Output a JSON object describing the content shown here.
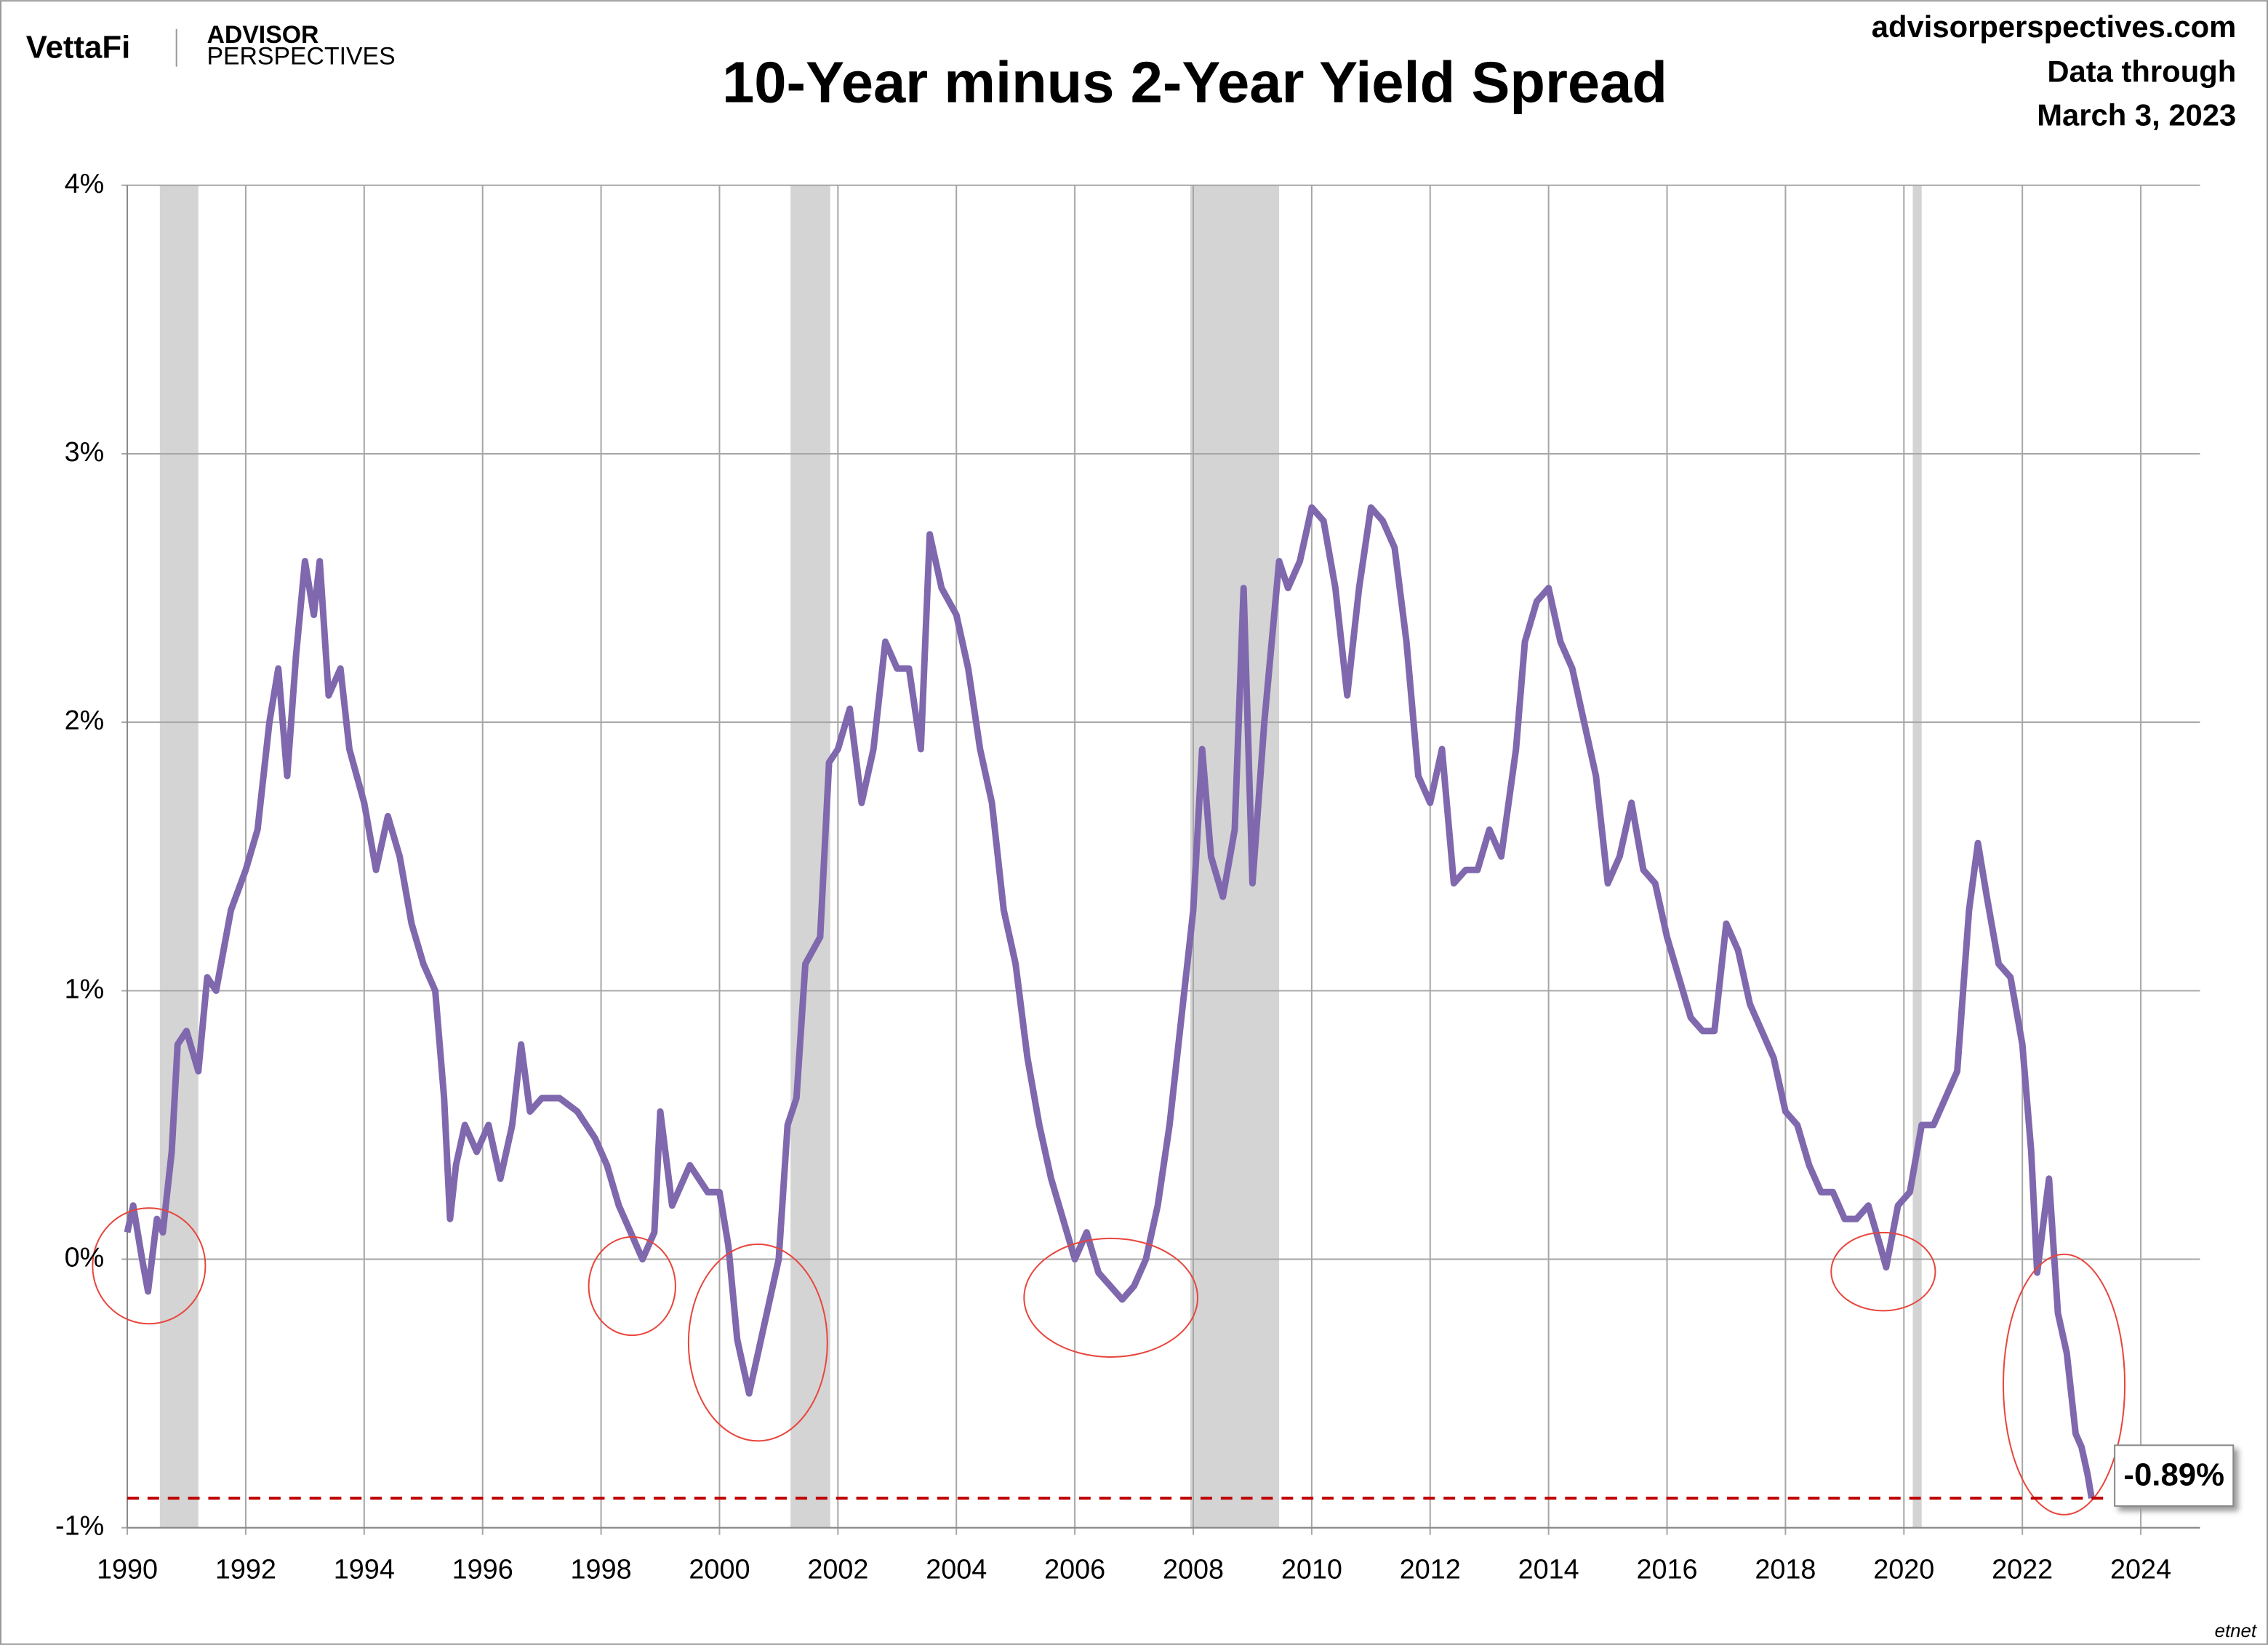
{
  "header": {
    "brand": "VettaFi",
    "logo_top": "ADVISOR",
    "logo_bottom": "PERSPECTIVES",
    "site": "advisorperspectives.com",
    "note_top": "Data through",
    "note_bottom": "March 3, 2023",
    "watermark": "etnet"
  },
  "chart_data": {
    "type": "line",
    "title": "10-Year minus 2-Year Yield Spread",
    "color": "#7f68ad",
    "grid": true,
    "xlim": [
      1990,
      2025
    ],
    "ylim": [
      -1,
      4
    ],
    "xticks": [
      1990,
      1992,
      1994,
      1996,
      1998,
      2000,
      2002,
      2004,
      2006,
      2008,
      2010,
      2012,
      2014,
      2016,
      2018,
      2020,
      2022,
      2024
    ],
    "yticks": [
      {
        "value": -1,
        "label": "-1%"
      },
      {
        "value": 0,
        "label": "0%"
      },
      {
        "value": 1,
        "label": "1%"
      },
      {
        "value": 2,
        "label": "2%"
      },
      {
        "value": 3,
        "label": "3%"
      },
      {
        "value": 4,
        "label": "4%"
      }
    ],
    "recession_color": "#d4d4d4",
    "recessions": [
      [
        1990.55,
        1991.2
      ],
      [
        2001.2,
        2001.87
      ],
      [
        2007.95,
        2009.45
      ],
      [
        2020.15,
        2020.3
      ]
    ],
    "annotation": {
      "value": -0.89,
      "label": "-0.89%",
      "color": "#c00000"
    },
    "x": [
      1990.0,
      1990.1,
      1990.25,
      1990.35,
      1990.5,
      1990.6,
      1990.75,
      1990.85,
      1991.0,
      1991.2,
      1991.35,
      1991.5,
      1991.75,
      1992.0,
      1992.2,
      1992.4,
      1992.55,
      1992.7,
      1992.85,
      1993.0,
      1993.15,
      1993.25,
      1993.4,
      1993.6,
      1993.75,
      1994.0,
      1994.2,
      1994.4,
      1994.6,
      1994.8,
      1995.0,
      1995.2,
      1995.35,
      1995.45,
      1995.55,
      1995.7,
      1995.9,
      1996.1,
      1996.3,
      1996.5,
      1996.65,
      1996.8,
      1997.0,
      1997.3,
      1997.6,
      1997.9,
      1998.1,
      1998.3,
      1998.5,
      1998.7,
      1998.9,
      1999.0,
      1999.2,
      1999.5,
      1999.8,
      2000.0,
      2000.15,
      2000.3,
      2000.5,
      2000.7,
      2000.85,
      2001.0,
      2001.15,
      2001.3,
      2001.45,
      2001.7,
      2001.85,
      2002.0,
      2002.2,
      2002.4,
      2002.6,
      2002.8,
      2003.0,
      2003.2,
      2003.4,
      2003.55,
      2003.75,
      2004.0,
      2004.2,
      2004.4,
      2004.6,
      2004.8,
      2005.0,
      2005.2,
      2005.4,
      2005.6,
      2005.8,
      2006.0,
      2006.2,
      2006.4,
      2006.6,
      2006.8,
      2007.0,
      2007.2,
      2007.4,
      2007.6,
      2007.8,
      2008.0,
      2008.15,
      2008.3,
      2008.5,
      2008.7,
      2008.85,
      2009.0,
      2009.2,
      2009.45,
      2009.6,
      2009.8,
      2010.0,
      2010.2,
      2010.4,
      2010.6,
      2010.8,
      2011.0,
      2011.2,
      2011.4,
      2011.6,
      2011.8,
      2012.0,
      2012.2,
      2012.4,
      2012.6,
      2012.8,
      2013.0,
      2013.2,
      2013.45,
      2013.6,
      2013.8,
      2014.0,
      2014.2,
      2014.4,
      2014.6,
      2014.8,
      2015.0,
      2015.2,
      2015.4,
      2015.6,
      2015.8,
      2016.0,
      2016.2,
      2016.4,
      2016.6,
      2016.8,
      2017.0,
      2017.2,
      2017.4,
      2017.6,
      2017.8,
      2018.0,
      2018.2,
      2018.4,
      2018.6,
      2018.8,
      2019.0,
      2019.2,
      2019.4,
      2019.6,
      2019.7,
      2019.9,
      2020.1,
      2020.3,
      2020.5,
      2020.7,
      2020.9,
      2021.1,
      2021.25,
      2021.4,
      2021.6,
      2021.8,
      2022.0,
      2022.15,
      2022.25,
      2022.45,
      2022.6,
      2022.75,
      2022.9,
      2023.0,
      2023.1,
      2023.17
    ],
    "values": [
      0.1,
      0.2,
      0.0,
      -0.12,
      0.15,
      0.1,
      0.4,
      0.8,
      0.85,
      0.7,
      1.05,
      1.0,
      1.3,
      1.45,
      1.6,
      2.0,
      2.2,
      1.8,
      2.25,
      2.6,
      2.4,
      2.6,
      2.1,
      2.2,
      1.9,
      1.7,
      1.45,
      1.65,
      1.5,
      1.25,
      1.1,
      1.0,
      0.6,
      0.15,
      0.35,
      0.5,
      0.4,
      0.5,
      0.3,
      0.5,
      0.8,
      0.55,
      0.6,
      0.6,
      0.55,
      0.45,
      0.35,
      0.2,
      0.1,
      0.0,
      0.1,
      0.55,
      0.2,
      0.35,
      0.25,
      0.25,
      0.05,
      -0.3,
      -0.5,
      -0.3,
      -0.15,
      0.0,
      0.5,
      0.6,
      1.1,
      1.2,
      1.85,
      1.9,
      2.05,
      1.7,
      1.9,
      2.3,
      2.2,
      2.2,
      1.9,
      2.7,
      2.5,
      2.4,
      2.2,
      1.9,
      1.7,
      1.3,
      1.1,
      0.75,
      0.5,
      0.3,
      0.15,
      0.0,
      0.1,
      -0.05,
      -0.1,
      -0.15,
      -0.1,
      0.0,
      0.2,
      0.5,
      0.9,
      1.3,
      1.9,
      1.5,
      1.35,
      1.6,
      2.5,
      1.4,
      2.0,
      2.6,
      2.5,
      2.6,
      2.8,
      2.75,
      2.5,
      2.1,
      2.5,
      2.8,
      2.75,
      2.65,
      2.3,
      1.8,
      1.7,
      1.9,
      1.4,
      1.45,
      1.45,
      1.6,
      1.5,
      1.9,
      2.3,
      2.45,
      2.5,
      2.3,
      2.2,
      2.0,
      1.8,
      1.4,
      1.5,
      1.7,
      1.45,
      1.4,
      1.2,
      1.05,
      0.9,
      0.85,
      0.85,
      1.25,
      1.15,
      0.95,
      0.85,
      0.75,
      0.55,
      0.5,
      0.35,
      0.25,
      0.25,
      0.15,
      0.15,
      0.2,
      0.05,
      -0.03,
      0.2,
      0.25,
      0.5,
      0.5,
      0.6,
      0.7,
      1.3,
      1.55,
      1.35,
      1.1,
      1.05,
      0.8,
      0.4,
      -0.05,
      0.3,
      -0.2,
      -0.35,
      -0.65,
      -0.7,
      -0.8,
      -0.89
    ]
  }
}
